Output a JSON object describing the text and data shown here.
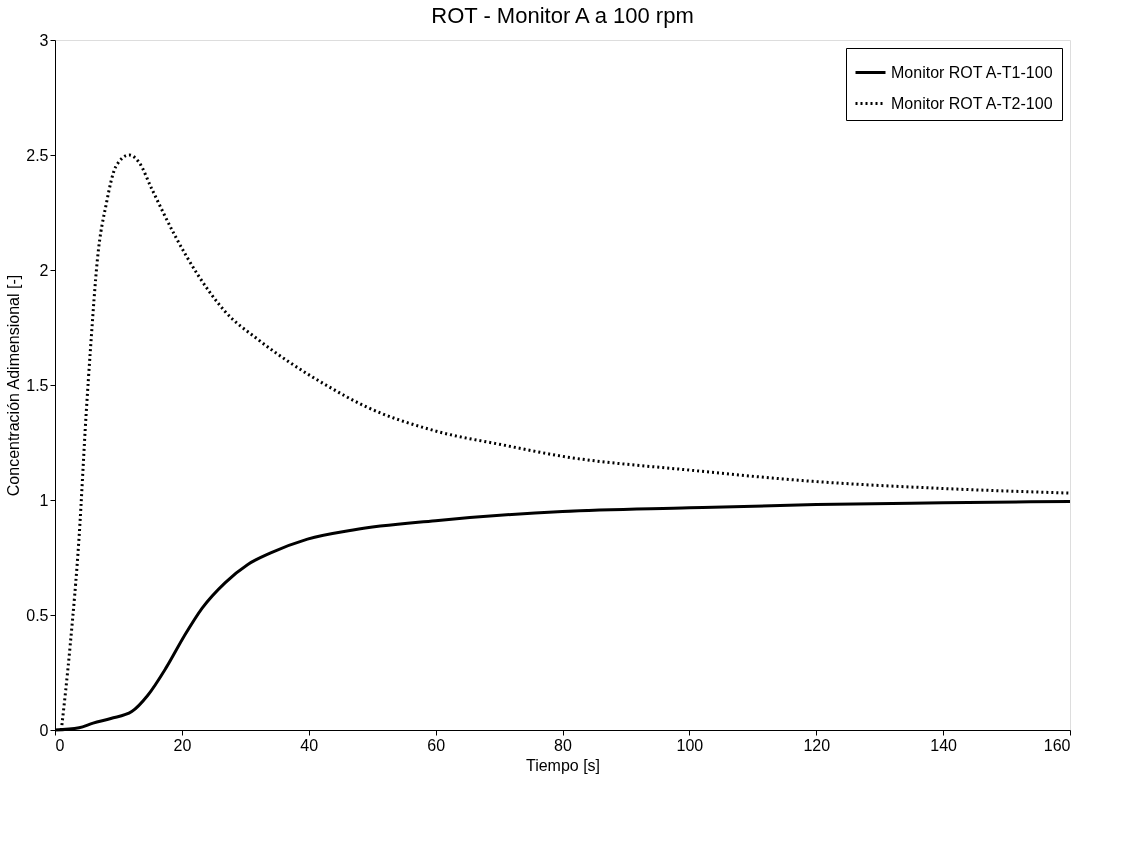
{
  "chart_data": {
    "type": "line",
    "title": "ROT - Monitor A a 100 rpm",
    "xlabel": "Tiempo [s]",
    "ylabel": "Concentración Adimensional [-]",
    "xlim": [
      0,
      160
    ],
    "xticks": [
      0,
      20,
      40,
      60,
      80,
      100,
      120,
      140,
      160
    ],
    "ylim": [
      0,
      3
    ],
    "yticks": [
      0,
      0.5,
      1,
      1.5,
      2,
      2.5,
      3
    ],
    "grid": false,
    "legend": "top right",
    "marker": "none",
    "series": [
      {
        "name": "Monitor ROT A-T1-100",
        "color": "#000000",
        "line_style": "solid",
        "x": [
          0,
          3.8,
          6,
          8.8,
          12.1,
          14.6,
          17.5,
          20.4,
          23.2,
          26.8,
          30.4,
          34,
          39.8,
          47,
          60,
          80,
          100,
          120,
          140,
          160
        ],
        "values": [
          0,
          0.01,
          0.03,
          0.05,
          0.08,
          0.15,
          0.27,
          0.41,
          0.53,
          0.64,
          0.72,
          0.77,
          0.83,
          0.87,
          0.91,
          0.95,
          0.966,
          0.98,
          0.988,
          0.994
        ]
      },
      {
        "name": "Monitor ROT A-T2-100",
        "color": "#000000",
        "line_style": "dotted",
        "x": [
          1,
          2.4,
          3.8,
          4.9,
          5.6,
          6.7,
          8.1,
          9.6,
          11.7,
          13.2,
          15.3,
          18.9,
          22.5,
          26.8,
          31.9,
          36.9,
          42.7,
          48.7,
          60,
          70.5,
          80,
          100,
          120,
          140,
          160
        ],
        "values": [
          0,
          0.37,
          0.84,
          1.37,
          1.66,
          2.05,
          2.29,
          2.45,
          2.5,
          2.47,
          2.35,
          2.15,
          1.98,
          1.82,
          1.7,
          1.6,
          1.5,
          1.41,
          1.3,
          1.24,
          1.19,
          1.13,
          1.08,
          1.05,
          1.03
        ]
      }
    ]
  }
}
